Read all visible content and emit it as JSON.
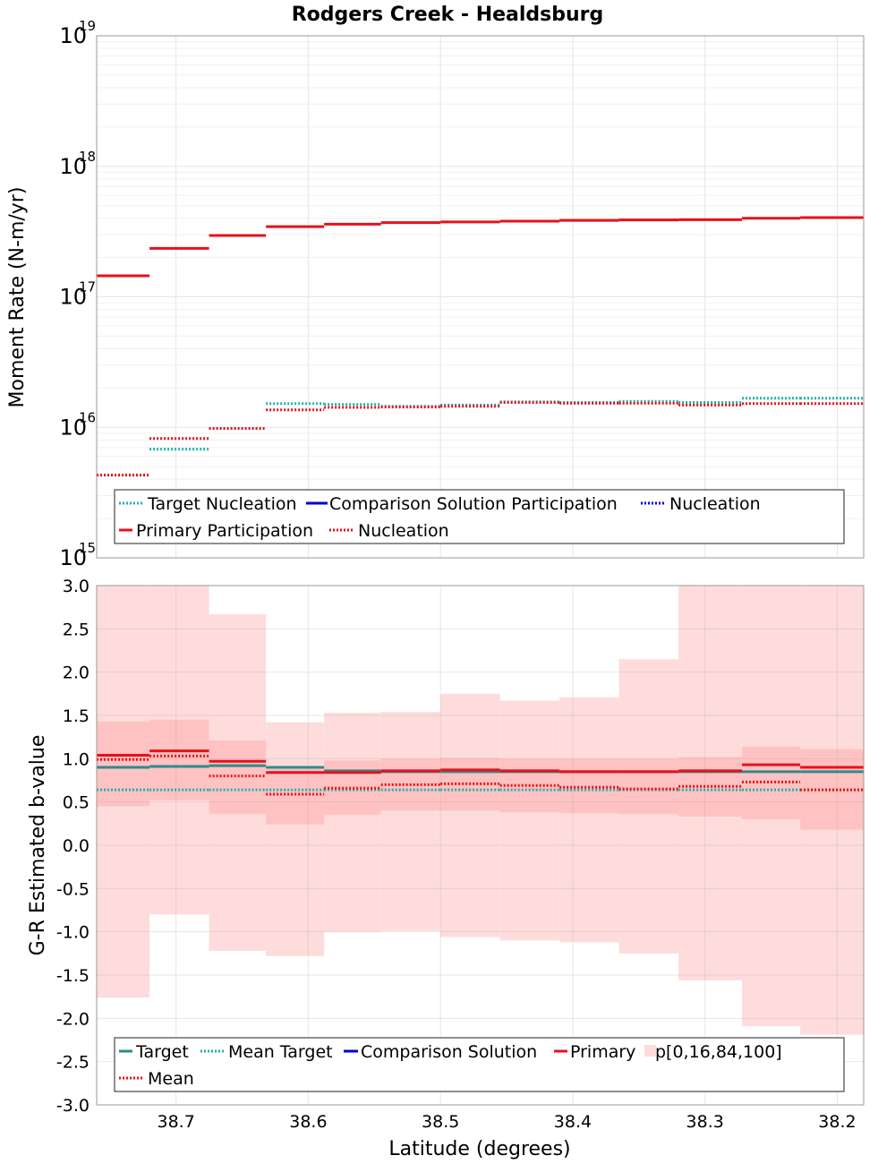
{
  "figure_title": "Rodgers Creek - Healdsburg",
  "x_axis_label": "Latitude (degrees)",
  "x_tick_labels": [
    "38.7",
    "38.6",
    "38.5",
    "38.4",
    "38.3",
    "38.2"
  ],
  "top_axis": {
    "ylabel": "Moment Rate (N-m/yr)",
    "y_ticks": [
      {
        "base": "10",
        "exp": "15"
      },
      {
        "base": "10",
        "exp": "16"
      },
      {
        "base": "10",
        "exp": "17"
      },
      {
        "base": "10",
        "exp": "18"
      },
      {
        "base": "10",
        "exp": "19"
      }
    ],
    "legend": {
      "row1": [
        "Target Nucleation",
        "Comparison Solution Participation",
        "Nucleation"
      ],
      "row2": [
        "Primary Participation",
        "Nucleation"
      ]
    }
  },
  "bottom_axis": {
    "ylabel": "G-R Estimated b-value",
    "y_tick_labels": [
      "3.0",
      "2.5",
      "2.0",
      "1.5",
      "1.0",
      "0.5",
      "0.0",
      "-0.5",
      "-1.0",
      "-1.5",
      "-2.0",
      "-2.5",
      "-3.0"
    ],
    "legend": {
      "row1": [
        "Target",
        "Mean Target",
        "Comparison Solution",
        "Primary",
        "p[0,16,84,100]"
      ],
      "row2": [
        "Mean"
      ]
    }
  },
  "colors": {
    "target": "#2e8b8b",
    "target_dotted": "#20b2aa",
    "comparison": "#0000cc",
    "primary": "#e8101a",
    "band_outer": "#ffdcdc",
    "band_inner": "#ffc2c2",
    "grid": "#e6e6e6"
  },
  "chart_data": [
    {
      "type": "line",
      "title": "Rodgers Creek - Healdsburg",
      "xlabel": "Latitude (degrees)",
      "ylabel": "Moment Rate (N-m/yr)",
      "yscale": "log",
      "xlim": [
        38.76,
        38.18
      ],
      "ylim": [
        1000000000000000.0,
        1e+19
      ],
      "grid": true,
      "legend_position": "bottom",
      "x_bins": [
        [
          38.76,
          38.72
        ],
        [
          38.72,
          38.675
        ],
        [
          38.675,
          38.632
        ],
        [
          38.632,
          38.588
        ],
        [
          38.588,
          38.545
        ],
        [
          38.545,
          38.5
        ],
        [
          38.5,
          38.455
        ],
        [
          38.455,
          38.41
        ],
        [
          38.41,
          38.365
        ],
        [
          38.365,
          38.32
        ],
        [
          38.32,
          38.272
        ],
        [
          38.272,
          38.228
        ],
        [
          38.228,
          38.18
        ]
      ],
      "series": [
        {
          "name": "Target Nucleation",
          "style": "dotted",
          "color": "#20b2aa",
          "values": [
            4300000000000000.0,
            6800000000000000.0,
            9800000000000000.0,
            1.52e+16,
            1.5e+16,
            1.45e+16,
            1.48e+16,
            1.57e+16,
            1.55e+16,
            1.58e+16,
            1.55e+16,
            1.67e+16,
            1.67e+16
          ]
        },
        {
          "name": "Primary Participation",
          "style": "solid",
          "color": "#e8101a",
          "values": [
            1.45e+17,
            2.35e+17,
            2.95e+17,
            3.45e+17,
            3.6e+17,
            3.7e+17,
            3.75e+17,
            3.8e+17,
            3.85e+17,
            3.88e+17,
            3.9e+17,
            4e+17,
            4.05e+17
          ]
        },
        {
          "name": "Nucleation",
          "style": "dotted",
          "color": "#e8101a",
          "values": [
            4300000000000000.0,
            8200000000000000.0,
            9800000000000000.0,
            1.36e+16,
            1.42e+16,
            1.43e+16,
            1.45e+16,
            1.55e+16,
            1.53e+16,
            1.53e+16,
            1.48e+16,
            1.52e+16,
            1.52e+16
          ]
        }
      ]
    },
    {
      "type": "line",
      "xlabel": "Latitude (degrees)",
      "ylabel": "G-R Estimated b-value",
      "xlim": [
        38.76,
        38.18
      ],
      "ylim": [
        -3.0,
        3.0
      ],
      "grid": true,
      "legend_position": "bottom",
      "x_bins": [
        [
          38.76,
          38.72
        ],
        [
          38.72,
          38.675
        ],
        [
          38.675,
          38.632
        ],
        [
          38.632,
          38.588
        ],
        [
          38.588,
          38.545
        ],
        [
          38.545,
          38.5
        ],
        [
          38.5,
          38.455
        ],
        [
          38.455,
          38.41
        ],
        [
          38.41,
          38.365
        ],
        [
          38.365,
          38.32
        ],
        [
          38.32,
          38.272
        ],
        [
          38.272,
          38.228
        ],
        [
          38.228,
          38.18
        ]
      ],
      "series": [
        {
          "name": "Target",
          "style": "solid",
          "color": "#2e8b8b",
          "values": [
            0.9,
            0.91,
            0.92,
            0.9,
            0.86,
            0.85,
            0.85,
            0.85,
            0.85,
            0.85,
            0.85,
            0.85,
            0.85
          ]
        },
        {
          "name": "Mean Target",
          "style": "dotted",
          "color": "#20b2aa",
          "values": [
            0.64,
            0.64,
            0.64,
            0.64,
            0.64,
            0.64,
            0.64,
            0.64,
            0.64,
            0.64,
            0.64,
            0.64,
            0.64
          ]
        },
        {
          "name": "Primary",
          "style": "solid",
          "color": "#e8101a",
          "values": [
            1.04,
            1.09,
            0.97,
            0.84,
            0.84,
            0.86,
            0.87,
            0.86,
            0.85,
            0.85,
            0.86,
            0.93,
            0.9
          ]
        },
        {
          "name": "Mean",
          "style": "dotted",
          "color": "#e8101a",
          "values": [
            0.99,
            1.03,
            0.8,
            0.59,
            0.66,
            0.7,
            0.71,
            0.69,
            0.67,
            0.65,
            0.68,
            0.73,
            0.64
          ]
        }
      ],
      "bands": {
        "name": "p[0,16,84,100]",
        "p0": [
          -1.76,
          -0.8,
          -1.22,
          -1.28,
          -1.0,
          -0.99,
          -1.06,
          -1.1,
          -1.12,
          -1.25,
          -1.56,
          -2.09,
          -2.19
        ],
        "p16": [
          0.45,
          0.52,
          0.36,
          0.24,
          0.35,
          0.4,
          0.4,
          0.38,
          0.37,
          0.36,
          0.33,
          0.3,
          0.18
        ],
        "p84": [
          1.43,
          1.45,
          1.21,
          0.91,
          0.98,
          1.0,
          1.01,
          1.0,
          1.0,
          1.0,
          1.02,
          1.14,
          1.11
        ],
        "p100": [
          3.0,
          3.0,
          2.67,
          1.42,
          1.53,
          1.54,
          1.75,
          1.67,
          1.71,
          2.15,
          3.0,
          3.0,
          3.0
        ]
      }
    }
  ]
}
